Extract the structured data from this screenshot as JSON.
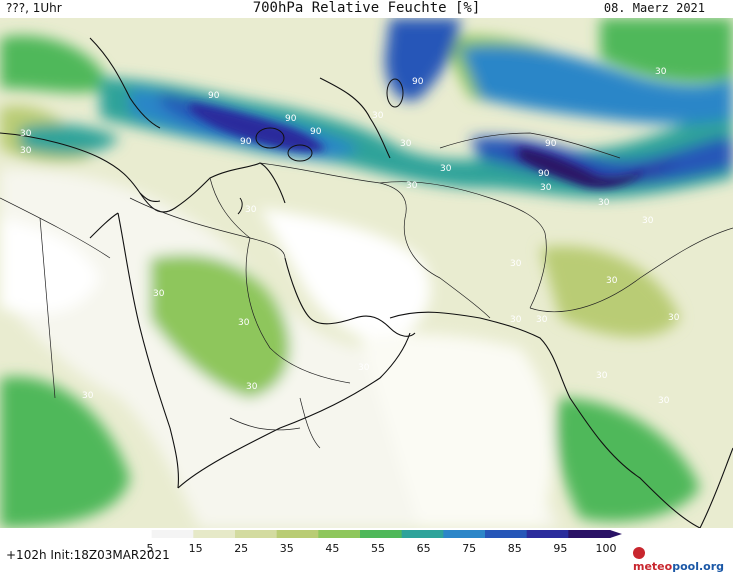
{
  "header": {
    "left": "???, 1Uhr",
    "title": "700hPa Relative Feuchte [%]",
    "date": "08. Maerz 2021"
  },
  "footer": {
    "forecast": "+102h  Init:18Z03MAR2021"
  },
  "logo": {
    "part1": "meteo",
    "part2": "pool",
    "part3": ".org"
  },
  "colorbar": {
    "labels": [
      "5",
      "15",
      "25",
      "35",
      "45",
      "55",
      "65",
      "75",
      "85",
      "95",
      "100"
    ],
    "colors": [
      "#ffffff",
      "#f4f4f4",
      "#e6e9c8",
      "#d3dba0",
      "#b9cc74",
      "#8ec65c",
      "#4fb85a",
      "#2ea39a",
      "#2c86c8",
      "#2656b8",
      "#2b2c9c",
      "#2a1266"
    ]
  },
  "map": {
    "contour_labels": [
      {
        "text": "90"
      },
      {
        "text": "90"
      },
      {
        "text": "90"
      },
      {
        "text": "90"
      },
      {
        "text": "90"
      },
      {
        "text": "90"
      },
      {
        "text": "90"
      },
      {
        "text": "30"
      },
      {
        "text": "30"
      },
      {
        "text": "30"
      },
      {
        "text": "30"
      },
      {
        "text": "30"
      },
      {
        "text": "30"
      },
      {
        "text": "30"
      },
      {
        "text": "30"
      },
      {
        "text": "30"
      },
      {
        "text": "30"
      },
      {
        "text": "30"
      },
      {
        "text": "30"
      },
      {
        "text": "30"
      },
      {
        "text": "30"
      },
      {
        "text": "30"
      },
      {
        "text": "30"
      },
      {
        "text": "30"
      },
      {
        "text": "30"
      },
      {
        "text": "30"
      },
      {
        "text": "30"
      },
      {
        "text": "30"
      },
      {
        "text": "30"
      },
      {
        "text": "30"
      }
    ]
  }
}
